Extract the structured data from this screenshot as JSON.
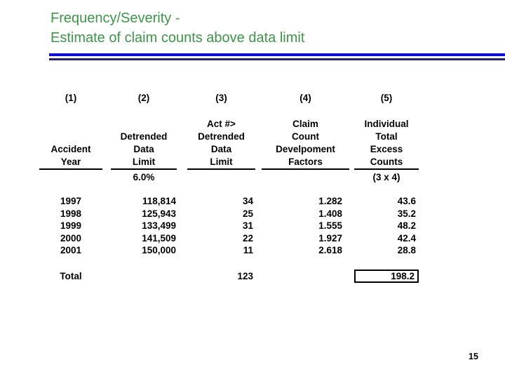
{
  "slide": {
    "title_line1": "Frequency/Severity -",
    "title_line2": "Estimate of claim counts above data limit",
    "page_number": "15",
    "colors": {
      "title_green": "#3e9549",
      "rule_blue": "#0d0dd3",
      "rule_navy": "#23236b"
    }
  },
  "table": {
    "column_numbers": [
      "(1)",
      "(2)",
      "(3)",
      "(4)",
      "(5)"
    ],
    "headers": [
      {
        "lines": [
          "Accident",
          "Year"
        ],
        "sub": ""
      },
      {
        "lines": [
          "Detrended",
          "Data",
          "Limit"
        ],
        "sub": "6.0%"
      },
      {
        "lines": [
          "Act #>",
          "Detrended",
          "Data",
          "Limit"
        ],
        "sub": ""
      },
      {
        "lines": [
          "Claim",
          "Count",
          "Develpoment",
          "Factors"
        ],
        "sub": ""
      },
      {
        "lines": [
          "Individual",
          "Total",
          "Excess",
          "Counts"
        ],
        "sub": "(3 x 4)"
      }
    ],
    "rows": [
      {
        "year": "1997",
        "detrended_limit": "118,814",
        "act_counts": "34",
        "cdf": "1.282",
        "excess": "43.6"
      },
      {
        "year": "1998",
        "detrended_limit": "125,943",
        "act_counts": "25",
        "cdf": "1.408",
        "excess": "35.2"
      },
      {
        "year": "1999",
        "detrended_limit": "133,499",
        "act_counts": "31",
        "cdf": "1.555",
        "excess": "48.2"
      },
      {
        "year": "2000",
        "detrended_limit": "141,509",
        "act_counts": "22",
        "cdf": "1.927",
        "excess": "42.4"
      },
      {
        "year": "2001",
        "detrended_limit": "150,000",
        "act_counts": "11",
        "cdf": "2.618",
        "excess": "28.8"
      }
    ],
    "total": {
      "label": "Total",
      "act_counts": "123",
      "excess": "198.2"
    }
  }
}
